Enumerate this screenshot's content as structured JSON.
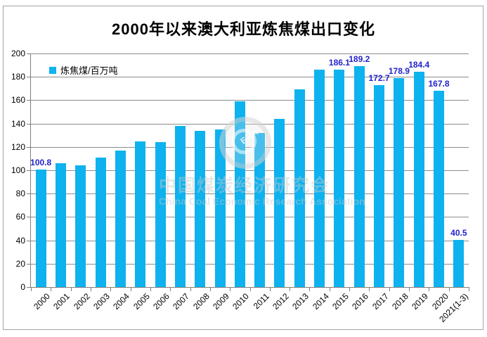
{
  "title": "2000年以来澳大利亚炼焦煤出口变化",
  "legend": {
    "label": "炼焦煤/百万吨"
  },
  "watermark": {
    "logo_letters": "ERA",
    "line1": "中国煤炭经济研究会",
    "line2": "China Coal Economic Research Association"
  },
  "colors": {
    "bar": "#0db2ef",
    "value_label": "#2222cc",
    "grid": "#8c8c8c",
    "axis": "#7f7f7f",
    "frame_border": "#a3a3a3",
    "background": "#ffffff",
    "text": "#000000"
  },
  "chart_data": {
    "type": "bar",
    "title": "2000年以来澳大利亚炼焦煤出口变化",
    "legend_entries": [
      "炼焦煤/百万吨"
    ],
    "legend_position": "top-left",
    "xlabel": "",
    "ylabel": "",
    "ylim": [
      0,
      200
    ],
    "ytick_step": 20,
    "grid": true,
    "categories": [
      "2000",
      "2001",
      "2002",
      "2003",
      "2004",
      "2005",
      "2006",
      "2007",
      "2008",
      "2009",
      "2010",
      "2011",
      "2012",
      "2013",
      "2014",
      "2015",
      "2016",
      "2017",
      "2018",
      "2019",
      "2020",
      "2021(1-3)"
    ],
    "values": [
      100.8,
      106,
      104,
      111,
      117,
      125,
      124,
      138,
      134,
      135,
      159,
      132,
      144,
      169,
      186,
      186.1,
      189.2,
      172.7,
      178.9,
      184.4,
      167.8,
      40.5
    ],
    "point_labels": [
      "100.8",
      "",
      "",
      "",
      "",
      "",
      "",
      "",
      "",
      "",
      "",
      "",
      "",
      "",
      "",
      "186.1",
      "189.2",
      "172.7",
      "178.9",
      "184.4",
      "167.8",
      "40.5"
    ]
  }
}
